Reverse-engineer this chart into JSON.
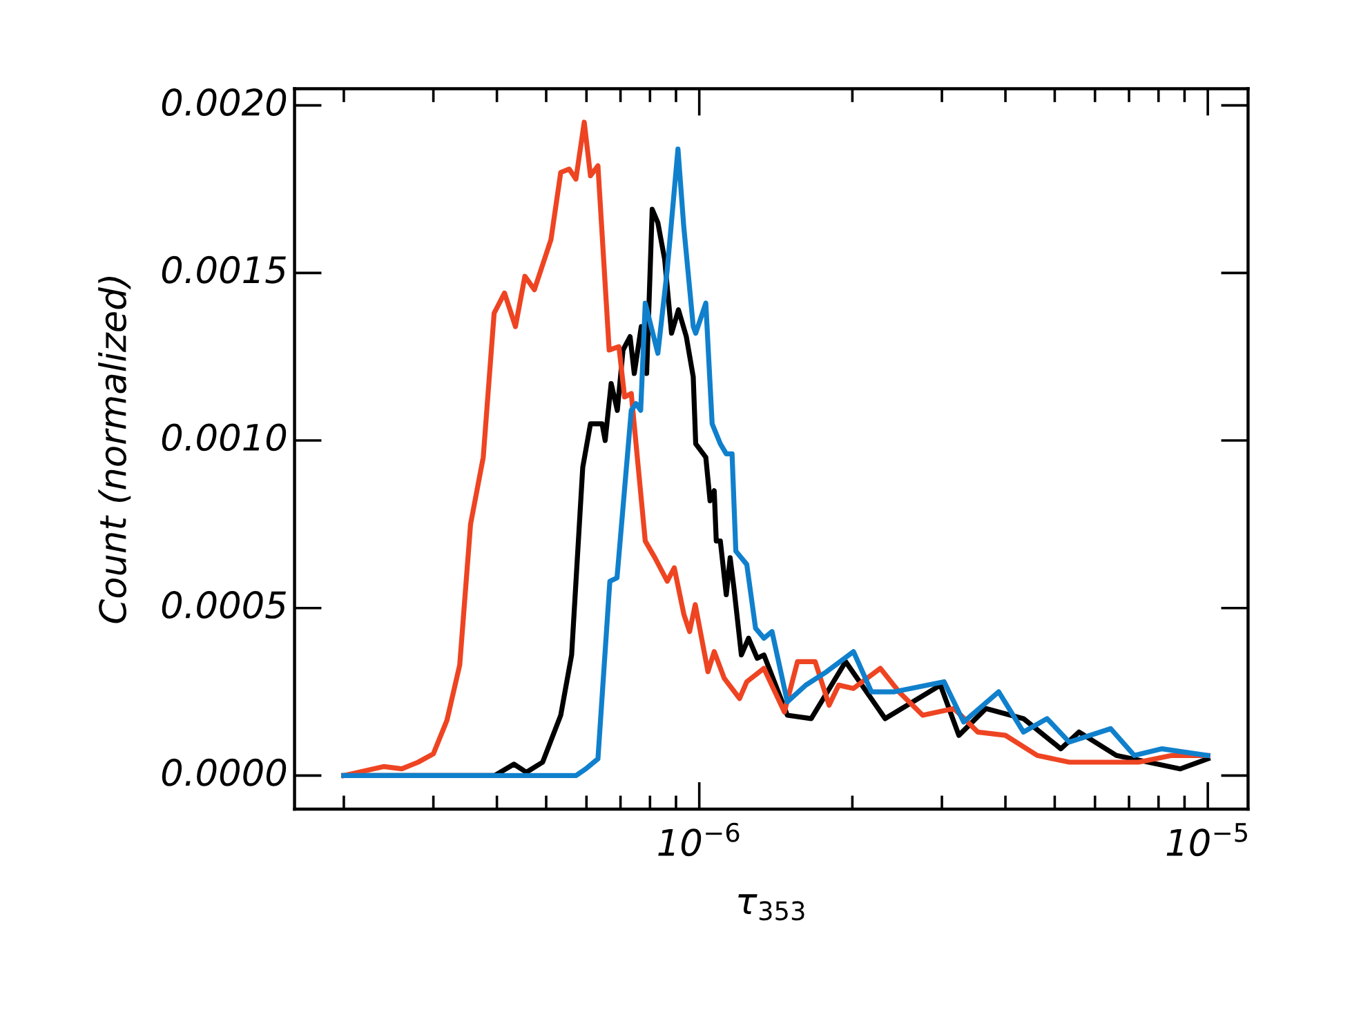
{
  "chart_data": {
    "type": "line",
    "xlabel": "τ$_{353}$",
    "ylabel": "Count (normalized)",
    "log": "x",
    "grid": false,
    "marker": "none",
    "line_style": "solid",
    "xlim": [
      1.6e-07,
      1.2e-05
    ],
    "xticks": [
      {
        "value": 1e-06,
        "label": "10$^{−6}$"
      },
      {
        "value": 1e-05,
        "label": "10$^{−5}$"
      }
    ],
    "ylim": [
      -0.0001,
      0.00205
    ],
    "yticks": [
      {
        "value": 0,
        "label": "0.0000"
      },
      {
        "value": 0.0005,
        "label": "0.0005"
      },
      {
        "value": 0.001,
        "label": "0.0010"
      },
      {
        "value": 0.0015,
        "label": "0.0015"
      },
      {
        "value": 0.002,
        "label": "0.0020"
      }
    ],
    "series": [
      {
        "color": "#000000",
        "x": [
          2e-07,
          3.96e-07,
          4.32e-07,
          4.57e-07,
          4.92e-07,
          5.34e-07,
          5.61e-07,
          5.9e-07,
          6.11e-07,
          6.44e-07,
          6.53e-07,
          6.71e-07,
          6.9e-07,
          7.08e-07,
          7.31e-07,
          7.45e-07,
          7.69e-07,
          7.88e-07,
          8.08e-07,
          8.29e-07,
          8.55e-07,
          8.82e-07,
          9.1e-07,
          9.43e-07,
          9.73e-07,
          9.84e-07,
          1.03e-06,
          1.05e-06,
          1.07e-06,
          1.08e-06,
          1.1e-06,
          1.13e-06,
          1.15e-06,
          1.17e-06,
          1.21e-06,
          1.25e-06,
          1.3e-06,
          1.34e-06,
          1.49e-06,
          1.66e-06,
          1.94e-06,
          2.32e-06,
          2.98e-06,
          3.24e-06,
          3.66e-06,
          4.34e-06,
          5.14e-06,
          5.58e-06,
          6.61e-06,
          8.83e-06,
          1e-05
        ],
        "values": [
          0,
          0,
          3.4e-05,
          1e-05,
          4e-05,
          0.00018,
          0.00036,
          0.00092,
          0.00105,
          0.00105,
          0.001,
          0.00117,
          0.00109,
          0.00127,
          0.00131,
          0.0012,
          0.00134,
          0.0012,
          0.00169,
          0.00165,
          0.00154,
          0.00132,
          0.00139,
          0.00131,
          0.00119,
          0.00099,
          0.00095,
          0.00082,
          0.00085,
          0.0007,
          0.0007,
          0.00054,
          0.00065,
          0.00056,
          0.00036,
          0.00041,
          0.00035,
          0.00036,
          0.00018,
          0.00017,
          0.00034,
          0.00017,
          0.00027,
          0.00012,
          0.0002,
          0.00017,
          8e-05,
          0.00013,
          6e-05,
          2e-05,
          5e-05
        ]
      },
      {
        "color": "#ee4422",
        "x": [
          2e-07,
          2.4e-07,
          2.6e-07,
          2.8e-07,
          3e-07,
          3.19e-07,
          3.38e-07,
          3.55e-07,
          3.76e-07,
          3.95e-07,
          4.14e-07,
          4.35e-07,
          4.54e-07,
          4.74e-07,
          5.11e-07,
          5.34e-07,
          5.55e-07,
          5.72e-07,
          5.94e-07,
          6.11e-07,
          6.32e-07,
          6.65e-07,
          6.95e-07,
          7.13e-07,
          7.35e-07,
          7.83e-07,
          8.18e-07,
          8.65e-07,
          8.93e-07,
          9.33e-07,
          9.57e-07,
          9.82e-07,
          1.04e-06,
          1.07e-06,
          1.12e-06,
          1.2e-06,
          1.24e-06,
          1.34e-06,
          1.47e-06,
          1.56e-06,
          1.69e-06,
          1.8e-06,
          1.88e-06,
          2.01e-06,
          2.27e-06,
          2.47e-06,
          2.75e-06,
          3.17e-06,
          3.53e-06,
          4e-06,
          4.62e-06,
          5.34e-06,
          6.33e-06,
          7.31e-06,
          8.49e-06,
          1e-05
        ],
        "values": [
          0,
          2.7e-05,
          2e-05,
          4e-05,
          6.5e-05,
          0.000165,
          0.00033,
          0.00075,
          0.00095,
          0.00138,
          0.00144,
          0.00134,
          0.00149,
          0.00145,
          0.0016,
          0.0018,
          0.00181,
          0.00178,
          0.00195,
          0.00179,
          0.00182,
          0.00127,
          0.00128,
          0.00113,
          0.00114,
          0.0007,
          0.00065,
          0.00058,
          0.00062,
          0.00048,
          0.00043,
          0.00051,
          0.00031,
          0.00037,
          0.00029,
          0.00023,
          0.00028,
          0.00032,
          0.00019,
          0.00034,
          0.00034,
          0.00021,
          0.00027,
          0.00026,
          0.00032,
          0.00025,
          0.00018,
          0.0002,
          0.00013,
          0.00012,
          6e-05,
          4e-05,
          4e-05,
          4e-05,
          6e-05,
          6e-05
        ]
      },
      {
        "color": "#1080cc",
        "x": [
          2e-07,
          5.72e-07,
          5.98e-07,
          6.32e-07,
          6.67e-07,
          6.89e-07,
          7.35e-07,
          7.51e-07,
          7.67e-07,
          7.83e-07,
          8.29e-07,
          8.65e-07,
          9.08e-07,
          9.32e-07,
          9.73e-07,
          9.84e-07,
          1.03e-06,
          1.06e-06,
          1.1e-06,
          1.13e-06,
          1.16e-06,
          1.18e-06,
          1.24e-06,
          1.29e-06,
          1.34e-06,
          1.39e-06,
          1.49e-06,
          1.62e-06,
          1.78e-06,
          2.01e-06,
          2.18e-06,
          2.42e-06,
          3.03e-06,
          3.31e-06,
          3.88e-06,
          4.34e-06,
          4.83e-06,
          5.34e-06,
          6.44e-06,
          7.17e-06,
          8.13e-06,
          1e-05
        ],
        "values": [
          0,
          0,
          2e-05,
          5e-05,
          0.00058,
          0.00059,
          0.00109,
          0.00111,
          0.00109,
          0.00141,
          0.00126,
          0.00151,
          0.00187,
          0.00164,
          0.00134,
          0.00132,
          0.00141,
          0.00105,
          0.00099,
          0.00096,
          0.00096,
          0.00067,
          0.00063,
          0.00044,
          0.00041,
          0.00043,
          0.00022,
          0.00027,
          0.00031,
          0.00037,
          0.00025,
          0.00025,
          0.00028,
          0.00016,
          0.00025,
          0.00013,
          0.00017,
          0.0001,
          0.00014,
          6e-05,
          8e-05,
          6e-05
        ]
      }
    ]
  }
}
